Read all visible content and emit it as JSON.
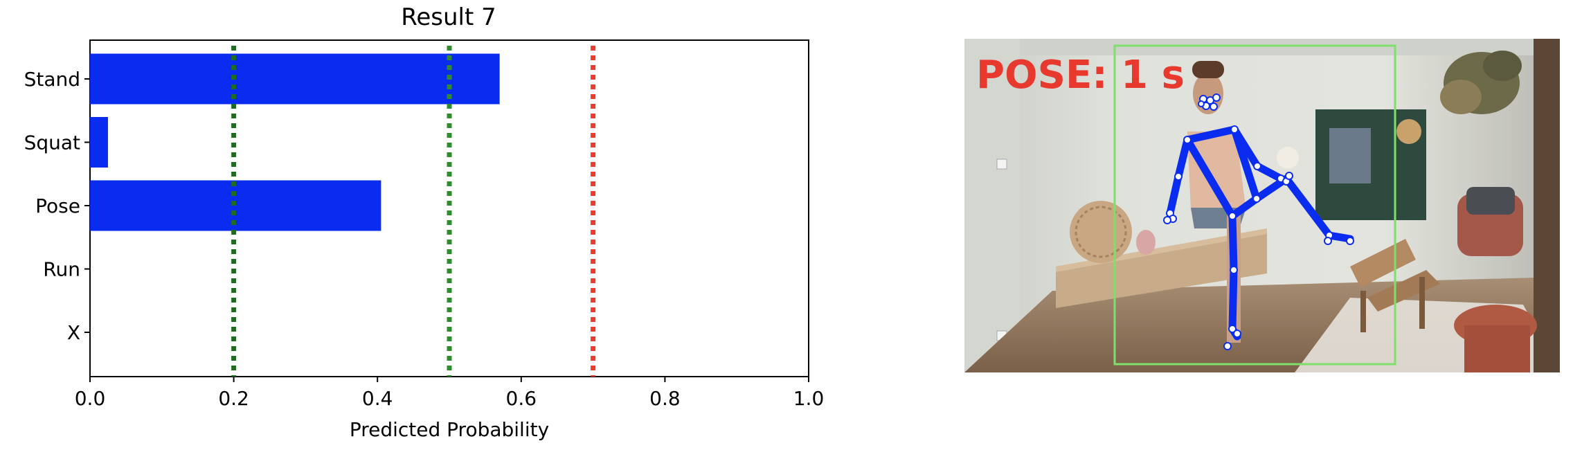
{
  "chart_data": {
    "type": "bar",
    "orientation": "horizontal",
    "title": "Result 7",
    "xlabel": "Predicted Probability",
    "ylabel": "",
    "categories": [
      "Stand",
      "Squat",
      "Pose",
      "Run",
      "X"
    ],
    "values": [
      0.57,
      0.025,
      0.405,
      0.0,
      0.0
    ],
    "xlim": [
      0.0,
      1.0
    ],
    "xticks": [
      "0.0",
      "0.2",
      "0.4",
      "0.6",
      "0.8",
      "1.0"
    ],
    "bar_color": "#0a2cf0",
    "threshold_lines": [
      {
        "x": 0.2,
        "color": "#1f6b1f"
      },
      {
        "x": 0.5,
        "color": "#2e8b2e"
      },
      {
        "x": 0.7,
        "color": "#ee3b2e"
      }
    ],
    "grid": false,
    "legend": "none"
  },
  "image_panel": {
    "overlay_text": "POSE:  1  s",
    "overlay_color": "#e8392e",
    "box_color": "#7ee06a",
    "skeleton_color": "#0a2cf0",
    "description_icon": "pose-estimation-photo"
  }
}
